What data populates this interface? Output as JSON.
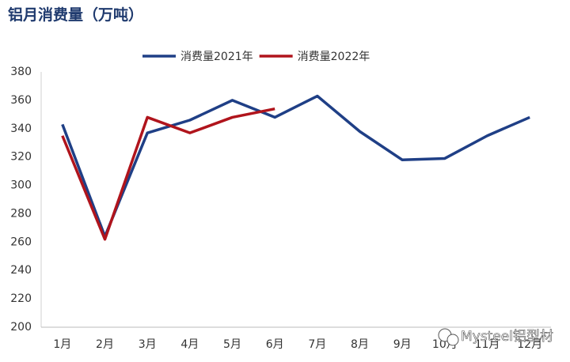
{
  "chart_data": {
    "type": "line",
    "title": "铝月消费量（万吨）",
    "categories": [
      "1月",
      "2月",
      "3月",
      "4月",
      "5月",
      "6月",
      "7月",
      "8月",
      "9月",
      "10月",
      "11月",
      "12月"
    ],
    "series": [
      {
        "name": "消费量2021年",
        "color": "#1f3f86",
        "values": [
          343,
          264,
          337,
          346,
          360,
          348,
          363,
          338,
          318,
          319,
          335,
          348
        ]
      },
      {
        "name": "消费量2022年",
        "color": "#b0141c",
        "values": [
          335,
          262,
          348,
          337,
          348,
          354,
          null,
          null,
          null,
          null,
          null,
          null
        ]
      }
    ],
    "ylim": [
      200,
      380
    ],
    "yticks": [
      200,
      220,
      240,
      260,
      280,
      300,
      320,
      340,
      360,
      380
    ],
    "grid": false,
    "legend": "top",
    "watermark": "Mysteel铝型材"
  }
}
